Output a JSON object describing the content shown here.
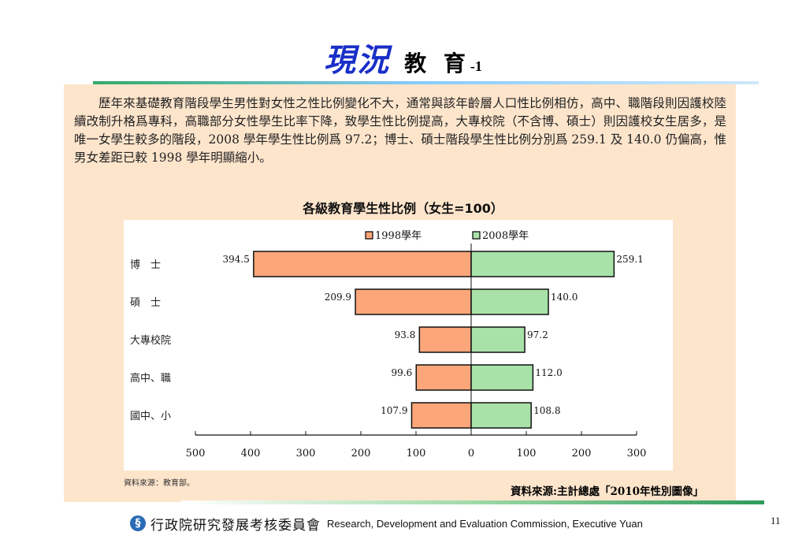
{
  "slide": {
    "title_main": "現況",
    "title_sub": "教 育",
    "title_num": "-1",
    "paragraph": "歷年來基礎教育階段學生男性對女性之性比例變化不大，通常與該年齡層人口性比例相仿，高中、職階段則因護校陸續改制升格爲專科，高職部分女性學生比率下降，致學生性比例提高，大專校院（不含博、碩士）則因護校女生居多，是唯一女學生較多的階段，2008 學年學生性比例爲 97.2；博士、碩士階段學生性比例分別爲 259.1 及 140.0 仍偏高，惟男女差距已較 1998 學年明顯縮小。",
    "source_left": "資料來源：教育部。",
    "source_right": "資料來源:主計總處「2010年性別圖像」",
    "footer_org_zh": "行政院研究發展考核委員會",
    "footer_org_en": "Research, Development and Evaluation Commission, Executive Yuan",
    "page_number": "11",
    "logo_glyph": "§"
  },
  "chart_data": {
    "type": "bar",
    "orientation": "horizontal-diverging",
    "title": "各級教育學生性比例（女生=100）",
    "categories": [
      "博　士",
      "碩　士",
      "大專校院",
      "高中、職",
      "國中、小"
    ],
    "series": [
      {
        "name": "1998學年",
        "values": [
          394.5,
          209.9,
          93.8,
          99.6,
          107.9
        ],
        "value_labels": [
          "394.5",
          "209.9",
          "93.8",
          "99.6",
          "107.9"
        ],
        "color": "#fca67a",
        "direction": "left"
      },
      {
        "name": "2008學年",
        "values": [
          259.1,
          140.0,
          97.2,
          112.0,
          108.8
        ],
        "value_labels": [
          "259.1",
          "140.0",
          "97.2",
          "112.0",
          "108.8"
        ],
        "color": "#a9e2a9",
        "direction": "right"
      }
    ],
    "x_ticks": [
      "500",
      "400",
      "300",
      "200",
      "100",
      "0",
      "100",
      "200",
      "300"
    ],
    "xlim_left": 500,
    "xlim_right": 300,
    "legend_placement": "top-center",
    "grid": false
  }
}
